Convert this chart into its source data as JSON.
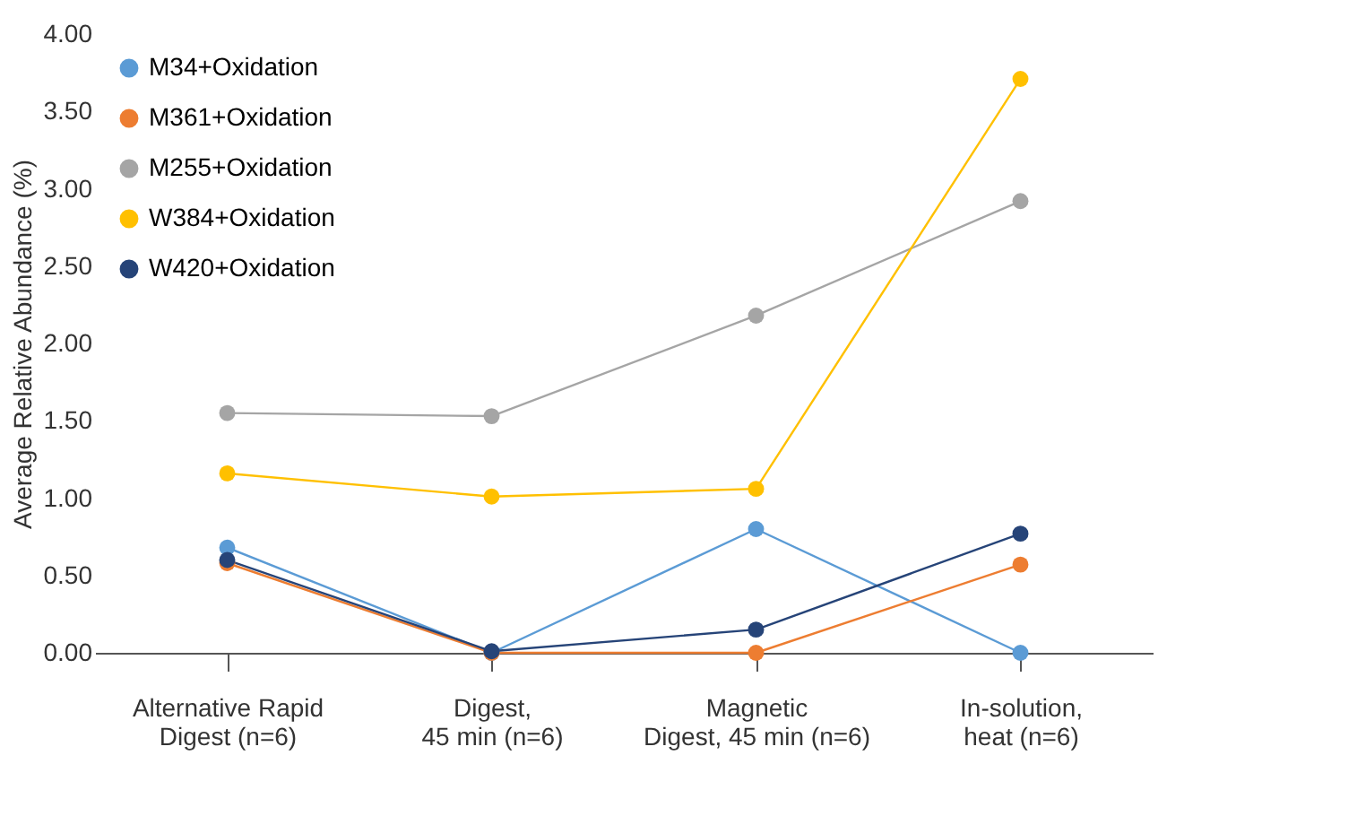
{
  "chart_data": {
    "type": "line",
    "ylabel": "Average Relative Abundance (%)",
    "categories": [
      "Alternative Rapid\nDigest (n=6)",
      "Digest,\n45 min (n=6)",
      "Magnetic\nDigest, 45 min (n=6)",
      "In-solution,\nheat (n=6)"
    ],
    "series": [
      {
        "name": "M34+Oxidation",
        "color": "#5b9bd5",
        "values": [
          0.68,
          0.0,
          0.8,
          0.0
        ]
      },
      {
        "name": "M361+Oxidation",
        "color": "#ed7d31",
        "values": [
          0.58,
          0.0,
          0.0,
          0.57
        ]
      },
      {
        "name": "M255+Oxidation",
        "color": "#a5a5a5",
        "values": [
          1.55,
          1.53,
          2.18,
          2.92
        ]
      },
      {
        "name": "W384+Oxidation",
        "color": "#ffc000",
        "values": [
          1.16,
          1.01,
          1.06,
          3.71
        ]
      },
      {
        "name": "W420+Oxidation",
        "color": "#264478",
        "values": [
          0.6,
          0.01,
          0.15,
          0.77
        ]
      }
    ],
    "ylim": [
      0,
      4
    ],
    "yticks": [
      {
        "value": 0,
        "label": "0.00"
      },
      {
        "value": 0.5,
        "label": "0.50"
      },
      {
        "value": 1,
        "label": "1.00"
      },
      {
        "value": 1.5,
        "label": "1.50"
      },
      {
        "value": 2,
        "label": "2.00"
      },
      {
        "value": 2.5,
        "label": "2.50"
      },
      {
        "value": 3,
        "label": "3.00"
      },
      {
        "value": 3.5,
        "label": "3.50"
      },
      {
        "value": 4,
        "label": "4.00"
      }
    ],
    "grid": false,
    "legend": "top left",
    "marker": "circle",
    "line_style": "solid"
  }
}
